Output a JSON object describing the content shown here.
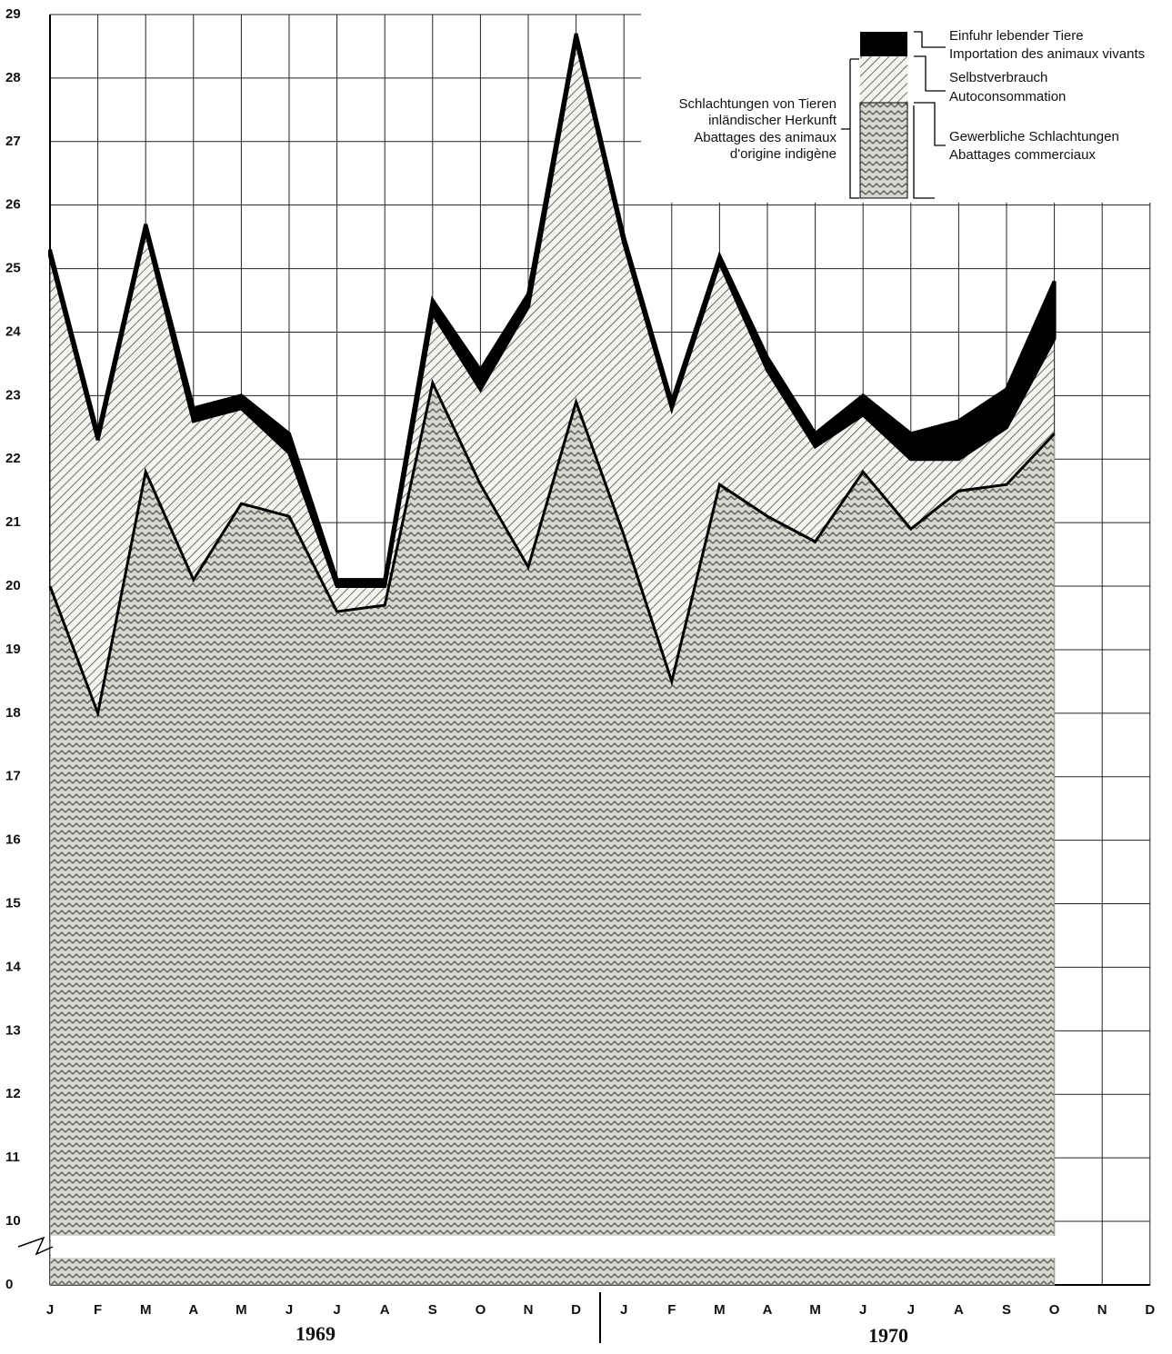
{
  "chart_data": {
    "type": "stacked-area",
    "categories": [
      "J",
      "F",
      "M",
      "A",
      "M",
      "J",
      "J",
      "A",
      "S",
      "O",
      "N",
      "D",
      "J",
      "F",
      "M",
      "A",
      "M",
      "J",
      "J",
      "A",
      "S",
      "O",
      "N",
      "D"
    ],
    "year_labels": [
      "1969",
      "1970"
    ],
    "series": [
      {
        "name": "Gewerbliche Schlachtungen",
        "name_fr": "Abattages commerciaux",
        "color": "#9a9a90",
        "pattern": "zigzag",
        "values": [
          20.0,
          18.0,
          21.8,
          20.1,
          21.3,
          21.1,
          19.6,
          19.7,
          23.2,
          21.6,
          20.3,
          22.9,
          20.8,
          18.5,
          21.6,
          21.1,
          20.7,
          21.8,
          20.9,
          21.5,
          21.6,
          22.4,
          null,
          null
        ]
      },
      {
        "name": "Selbstverbrauch",
        "name_fr": "Autoconsommation",
        "color": "#222222",
        "pattern": "diagonal",
        "values": [
          5.2,
          4.3,
          3.8,
          2.5,
          1.5,
          1.0,
          0.4,
          0.3,
          1.1,
          1.5,
          4.1,
          5.7,
          4.6,
          4.3,
          3.5,
          2.3,
          1.5,
          0.9,
          1.1,
          0.5,
          0.9,
          1.5,
          null,
          null
        ]
      },
      {
        "name": "Einfuhr lebender Tiere",
        "name_fr": "Importation des animaux vivants",
        "color": "#000000",
        "pattern": "solid",
        "values": [
          0.1,
          0.1,
          0.1,
          0.2,
          0.2,
          0.3,
          0.1,
          0.1,
          0.2,
          0.3,
          0.2,
          0.1,
          0.1,
          0.1,
          0.1,
          0.2,
          0.2,
          0.3,
          0.4,
          0.6,
          0.6,
          0.9,
          null,
          null
        ]
      }
    ],
    "group_label": [
      "Schlachtungen von Tieren",
      "inländischer Herkunft",
      "Abattages des animaux",
      "d'origine indigène"
    ],
    "ylim": [
      0,
      29
    ],
    "axis_break": [
      0,
      10
    ],
    "yticks": [
      0,
      10,
      11,
      12,
      13,
      14,
      15,
      16,
      17,
      18,
      19,
      20,
      21,
      22,
      23,
      24,
      25,
      26,
      27,
      28,
      29
    ],
    "grid": true
  }
}
